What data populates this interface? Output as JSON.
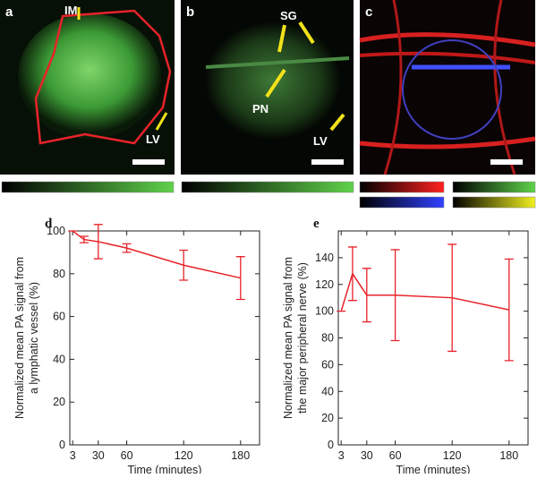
{
  "panels": [
    {
      "label": "a",
      "annotations": [
        "IM",
        "LV"
      ]
    },
    {
      "label": "b",
      "annotations": [
        "SG",
        "PN",
        "LV"
      ]
    },
    {
      "label": "c"
    }
  ],
  "chart_data": [
    {
      "type": "line",
      "panel": "d",
      "color": "#e8232a",
      "x": [
        3,
        15,
        30,
        60,
        120,
        180
      ],
      "values": [
        100,
        96,
        95,
        92,
        84,
        78
      ],
      "errors": [
        0,
        1.5,
        8,
        2,
        7,
        10
      ],
      "xlim": [
        0,
        200
      ],
      "xticks": [
        3,
        30,
        60,
        120,
        180
      ],
      "ylim": [
        0,
        100
      ],
      "yticks": [
        0,
        20,
        40,
        60,
        80,
        100
      ],
      "xlabel": "Time (minutes)",
      "ylabel": [
        "Normalized mean PA signal from",
        "a lymphatic vessel (%)"
      ]
    },
    {
      "type": "line",
      "panel": "e",
      "color": "#e8232a",
      "x": [
        3,
        15,
        30,
        60,
        120,
        180
      ],
      "values": [
        100,
        128,
        112,
        112,
        110,
        101
      ],
      "errors": [
        0,
        20,
        20,
        34,
        40,
        38
      ],
      "xlim": [
        0,
        200
      ],
      "xticks": [
        3,
        30,
        60,
        120,
        180
      ],
      "ylim": [
        0,
        160
      ],
      "yticks": [
        0,
        20,
        40,
        60,
        80,
        100,
        120,
        140
      ],
      "xlabel": "Time (minutes)",
      "ylabel": [
        "Normalized mean PA signal from",
        "the major peripheral nerve (%)"
      ]
    }
  ]
}
